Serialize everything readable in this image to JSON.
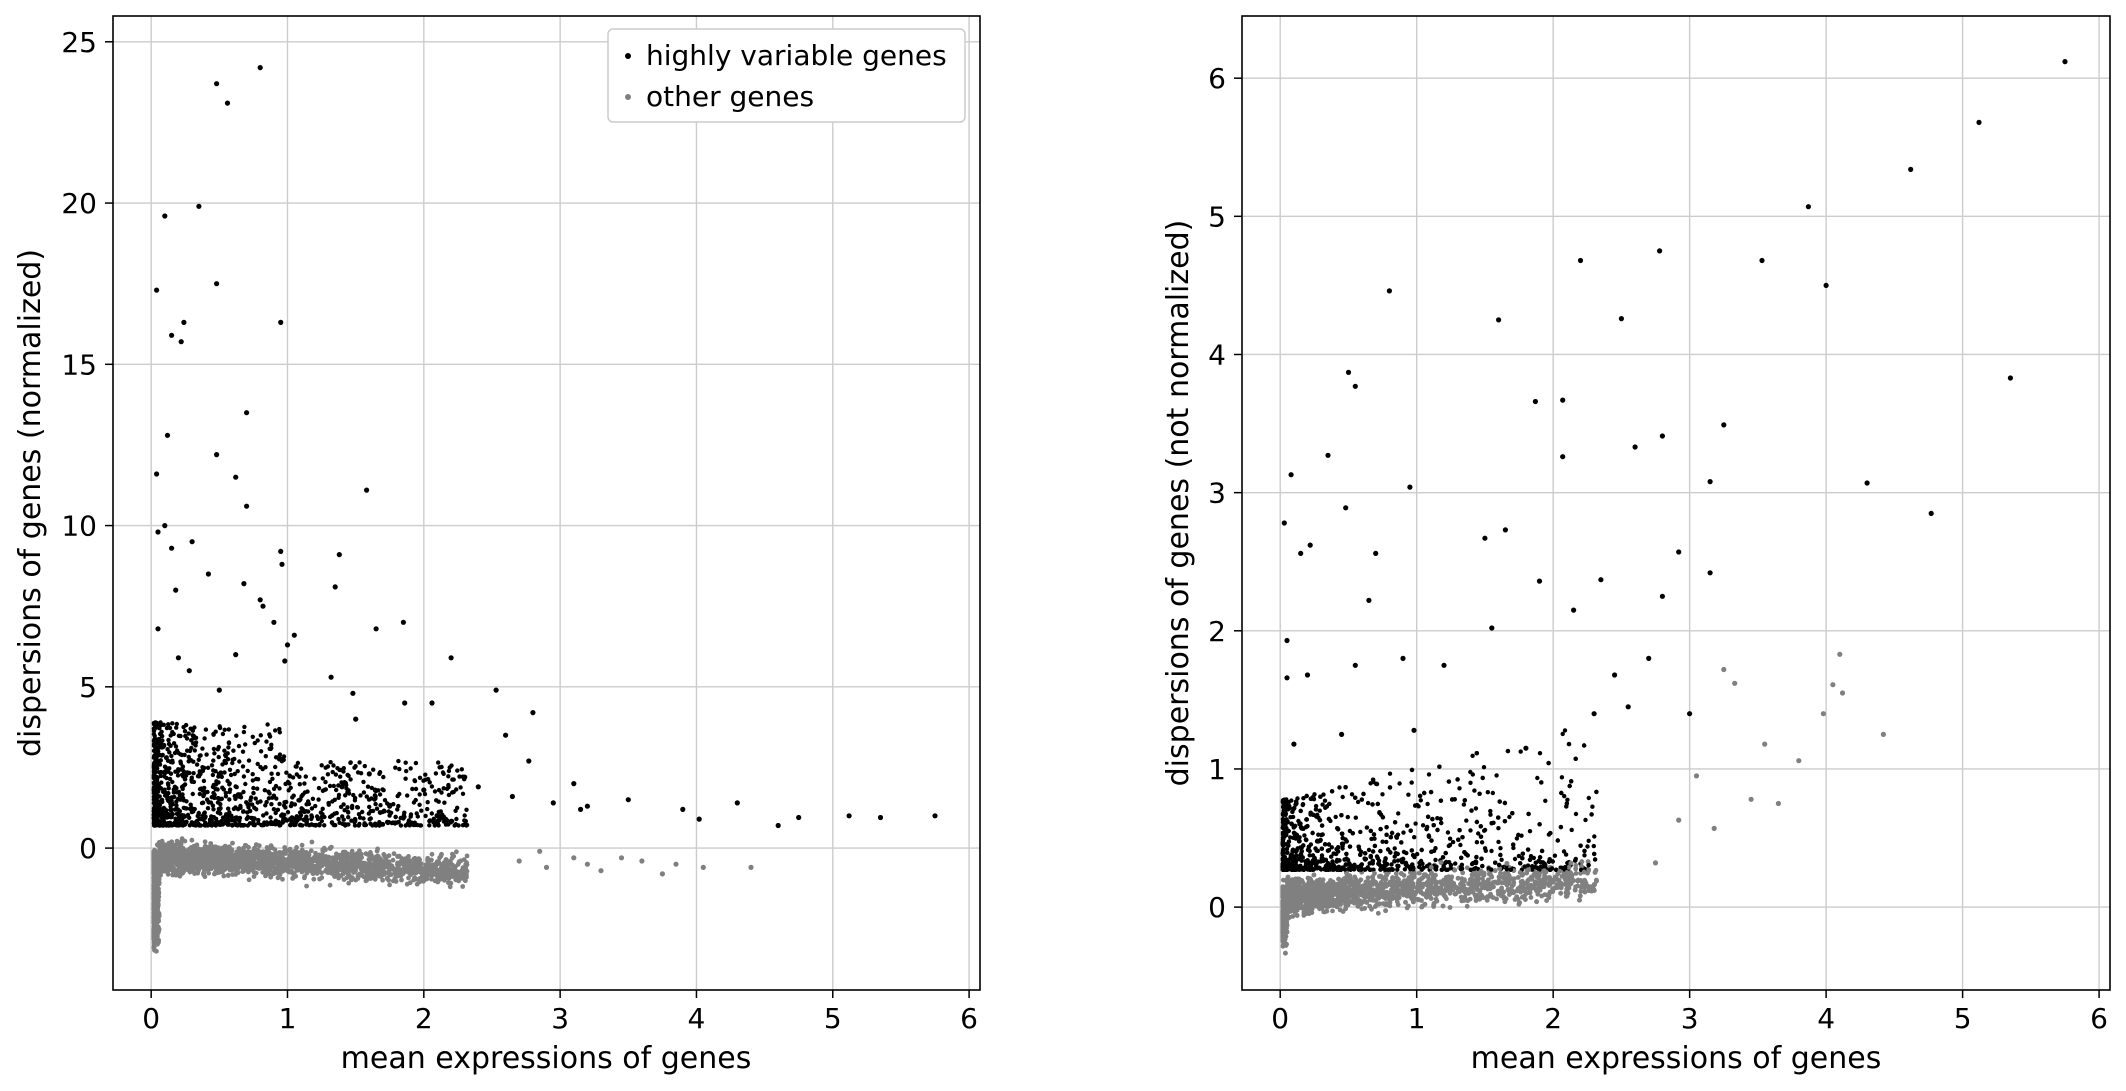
{
  "colors": {
    "highly_variable": "#000000",
    "other": "#808080",
    "grid": "#cccccc",
    "frame": "#000000"
  },
  "chart_data": [
    {
      "type": "scatter",
      "xlabel": "mean expressions of genes",
      "ylabel": "dispersions of genes (normalized)",
      "xlim": [
        -0.28,
        6.08
      ],
      "ylim": [
        -4.4,
        25.8
      ],
      "xticks": [
        0,
        1,
        2,
        3,
        4,
        5,
        6
      ],
      "yticks": [
        0,
        5,
        10,
        15,
        20,
        25
      ],
      "grid": true,
      "legend": {
        "placement": "upper right",
        "entries": [
          "highly variable genes",
          "other genes"
        ]
      },
      "series": [
        {
          "name": "highly variable genes",
          "color": "#000000",
          "x": [
            0.8,
            0.48,
            0.56,
            0.1,
            0.35,
            0.04,
            0.48,
            0.95,
            0.24,
            0.15,
            0.22,
            0.7,
            0.12,
            0.48,
            0.04,
            0.62,
            1.58,
            0.7,
            0.1,
            0.05,
            0.95,
            0.15,
            1.38,
            0.3,
            0.96,
            0.42,
            0.68,
            1.35,
            0.8,
            0.82,
            1.05,
            1.85,
            1.0,
            0.62,
            0.2,
            0.05,
            1.65,
            0.9,
            0.18,
            2.2,
            1.48,
            0.28,
            0.5,
            1.32,
            2.53,
            0.98,
            1.86,
            2.06,
            1.5,
            2.8,
            2.6,
            2.77,
            1.6,
            2.3,
            1.4,
            2.0,
            3.1,
            3.2,
            3.5,
            3.9,
            4.02,
            4.3,
            4.6,
            4.75,
            5.12,
            5.35,
            5.75,
            2.95,
            3.15,
            2.65,
            1.75,
            2.1,
            2.4
          ],
          "y": [
            24.2,
            23.7,
            23.1,
            19.6,
            19.9,
            17.3,
            17.5,
            16.3,
            16.3,
            15.9,
            15.7,
            13.5,
            12.8,
            12.2,
            11.6,
            11.5,
            11.1,
            10.6,
            10.0,
            9.8,
            9.2,
            9.3,
            9.1,
            9.5,
            8.8,
            8.5,
            8.2,
            8.1,
            7.7,
            7.5,
            6.6,
            7.0,
            6.3,
            6.0,
            5.9,
            6.8,
            6.8,
            7.0,
            8.0,
            5.9,
            4.8,
            5.5,
            4.9,
            5.3,
            4.9,
            5.8,
            4.5,
            4.5,
            4.0,
            4.2,
            3.5,
            2.7,
            2.3,
            2.2,
            1.9,
            1.8,
            2.0,
            1.3,
            1.5,
            1.2,
            0.9,
            1.4,
            0.7,
            0.95,
            1.0,
            0.95,
            1.0,
            1.4,
            1.2,
            1.6,
            1.3,
            1.0,
            1.9
          ]
        },
        {
          "name": "other genes",
          "color": "#808080",
          "x": [
            2.7,
            2.9,
            3.1,
            3.3,
            3.6,
            3.75,
            3.85,
            4.05,
            4.4,
            2.85,
            3.2,
            3.45
          ],
          "y": [
            -0.4,
            -0.6,
            -0.3,
            -0.7,
            -0.4,
            -0.8,
            -0.5,
            -0.6,
            -0.6,
            -0.1,
            -0.5,
            -0.3
          ]
        }
      ]
    },
    {
      "type": "scatter",
      "xlabel": "mean expressions of genes",
      "ylabel": "dispersions of genes (not normalized)",
      "xlim": [
        -0.28,
        6.08
      ],
      "ylim": [
        -0.6,
        6.45
      ],
      "xticks": [
        0,
        1,
        2,
        3,
        4,
        5,
        6
      ],
      "yticks": [
        0,
        1,
        2,
        3,
        4,
        5,
        6
      ],
      "grid": true,
      "series": [
        {
          "name": "highly variable genes",
          "color": "#000000",
          "x": [
            5.75,
            5.12,
            4.62,
            3.87,
            4.0,
            2.78,
            2.2,
            3.53,
            0.8,
            1.6,
            2.5,
            0.5,
            0.55,
            1.87,
            2.07,
            2.6,
            2.8,
            3.25,
            0.35,
            0.08,
            2.07,
            0.95,
            3.15,
            5.35,
            4.3,
            4.77,
            0.03,
            0.48,
            0.15,
            0.22,
            0.7,
            1.65,
            1.5,
            2.35,
            2.8,
            2.92,
            0.65,
            0.05,
            1.9,
            0.55,
            2.15,
            1.55,
            0.05,
            0.2,
            1.2,
            0.9,
            2.7,
            2.45,
            3.0,
            0.98,
            0.45,
            0.1,
            1.8,
            2.3,
            2.55,
            3.15
          ],
          "y": [
            6.12,
            5.68,
            5.34,
            5.07,
            4.5,
            4.75,
            4.68,
            4.68,
            4.46,
            4.25,
            4.26,
            3.87,
            3.77,
            3.66,
            3.67,
            3.33,
            3.41,
            3.49,
            3.27,
            3.13,
            3.26,
            3.04,
            3.08,
            3.83,
            3.07,
            2.85,
            2.78,
            2.89,
            2.56,
            2.62,
            2.56,
            2.73,
            2.67,
            2.37,
            2.25,
            2.57,
            2.22,
            1.93,
            2.36,
            1.75,
            2.15,
            2.02,
            1.66,
            1.68,
            1.75,
            1.8,
            1.8,
            1.68,
            1.4,
            1.28,
            1.25,
            1.18,
            1.15,
            1.4,
            1.45,
            2.42
          ]
        },
        {
          "name": "other genes",
          "color": "#808080",
          "x": [
            3.25,
            3.33,
            3.45,
            3.55,
            3.65,
            3.8,
            3.98,
            4.05,
            4.1,
            4.12,
            4.42,
            3.18,
            2.92,
            2.75,
            3.05
          ],
          "y": [
            1.72,
            1.62,
            0.78,
            1.18,
            0.75,
            1.06,
            1.4,
            1.61,
            1.83,
            1.55,
            1.25,
            0.57,
            0.63,
            0.32,
            0.95
          ]
        }
      ]
    }
  ]
}
